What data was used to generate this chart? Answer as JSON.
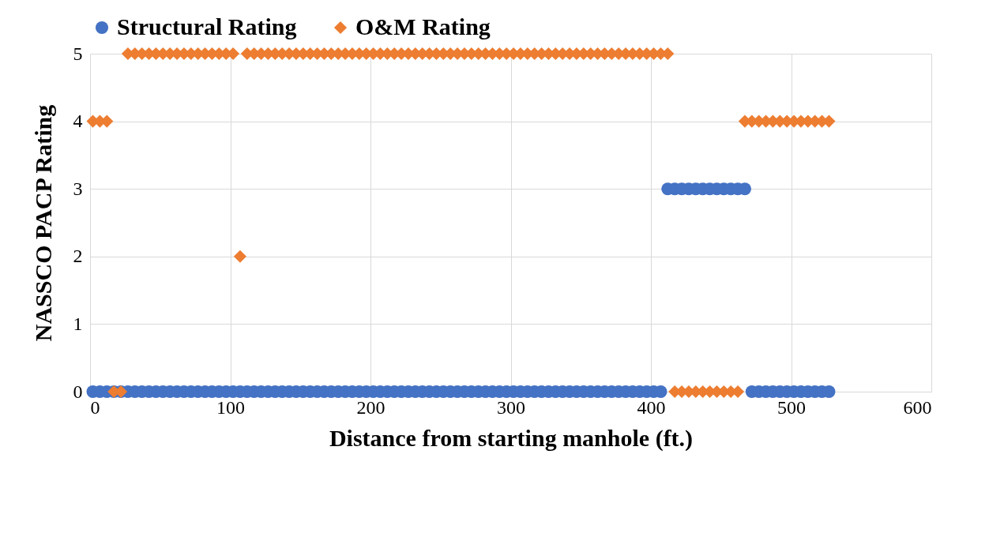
{
  "chart_data": {
    "type": "scatter",
    "xlabel": "Distance from starting manhole (ft.)",
    "ylabel": "NASSCO PACP Rating",
    "x": [
      2,
      7,
      12,
      17,
      22,
      27,
      32,
      37,
      42,
      47,
      52,
      57,
      62,
      67,
      72,
      77,
      82,
      87,
      92,
      97,
      102,
      107,
      112,
      117,
      122,
      127,
      132,
      137,
      142,
      147,
      152,
      157,
      162,
      167,
      172,
      177,
      182,
      187,
      192,
      197,
      202,
      207,
      212,
      217,
      222,
      227,
      232,
      237,
      242,
      247,
      252,
      257,
      262,
      267,
      272,
      277,
      282,
      287,
      292,
      297,
      302,
      307,
      312,
      317,
      322,
      327,
      332,
      337,
      342,
      347,
      352,
      357,
      362,
      367,
      372,
      377,
      382,
      387,
      392,
      397,
      402,
      407,
      412,
      417,
      422,
      427,
      432,
      437,
      442,
      447,
      452,
      457,
      462,
      467,
      472,
      477,
      482,
      487,
      492,
      497,
      502,
      507,
      512,
      517,
      522,
      527
    ],
    "series": [
      {
        "name": "Structural Rating",
        "color": "#4472c4",
        "marker": "circle",
        "values": [
          0,
          0,
          0,
          0,
          0,
          0,
          0,
          0,
          0,
          0,
          0,
          0,
          0,
          0,
          0,
          0,
          0,
          0,
          0,
          0,
          0,
          0,
          0,
          0,
          0,
          0,
          0,
          0,
          0,
          0,
          0,
          0,
          0,
          0,
          0,
          0,
          0,
          0,
          0,
          0,
          0,
          0,
          0,
          0,
          0,
          0,
          0,
          0,
          0,
          0,
          0,
          0,
          0,
          0,
          0,
          0,
          0,
          0,
          0,
          0,
          0,
          0,
          0,
          0,
          0,
          0,
          0,
          0,
          0,
          0,
          0,
          0,
          0,
          0,
          0,
          0,
          0,
          0,
          0,
          0,
          0,
          0,
          3,
          3,
          3,
          3,
          3,
          3,
          3,
          3,
          3,
          3,
          3,
          3,
          0,
          0,
          0,
          0,
          0,
          0,
          0,
          0,
          0,
          0,
          0,
          0
        ]
      },
      {
        "name": "O&M Rating",
        "color": "#ed7d31",
        "marker": "diamond",
        "values": [
          4,
          4,
          4,
          0,
          0,
          5,
          5,
          5,
          5,
          5,
          5,
          5,
          5,
          5,
          5,
          5,
          5,
          5,
          5,
          5,
          5,
          2,
          5,
          5,
          5,
          5,
          5,
          5,
          5,
          5,
          5,
          5,
          5,
          5,
          5,
          5,
          5,
          5,
          5,
          5,
          5,
          5,
          5,
          5,
          5,
          5,
          5,
          5,
          5,
          5,
          5,
          5,
          5,
          5,
          5,
          5,
          5,
          5,
          5,
          5,
          5,
          5,
          5,
          5,
          5,
          5,
          5,
          5,
          5,
          5,
          5,
          5,
          5,
          5,
          5,
          5,
          5,
          5,
          5,
          5,
          5,
          5,
          5,
          0,
          0,
          0,
          0,
          0,
          0,
          0,
          0,
          0,
          0,
          4,
          4,
          4,
          4,
          4,
          4,
          4,
          4,
          4,
          4,
          4,
          4,
          4
        ]
      }
    ],
    "xlim": [
      0,
      600
    ],
    "xticks": [
      0,
      100,
      200,
      300,
      400,
      500,
      600
    ],
    "ylim": [
      0,
      5
    ],
    "yticks": [
      0,
      1,
      2,
      3,
      4,
      5
    ],
    "grid": true,
    "legend": "top"
  }
}
